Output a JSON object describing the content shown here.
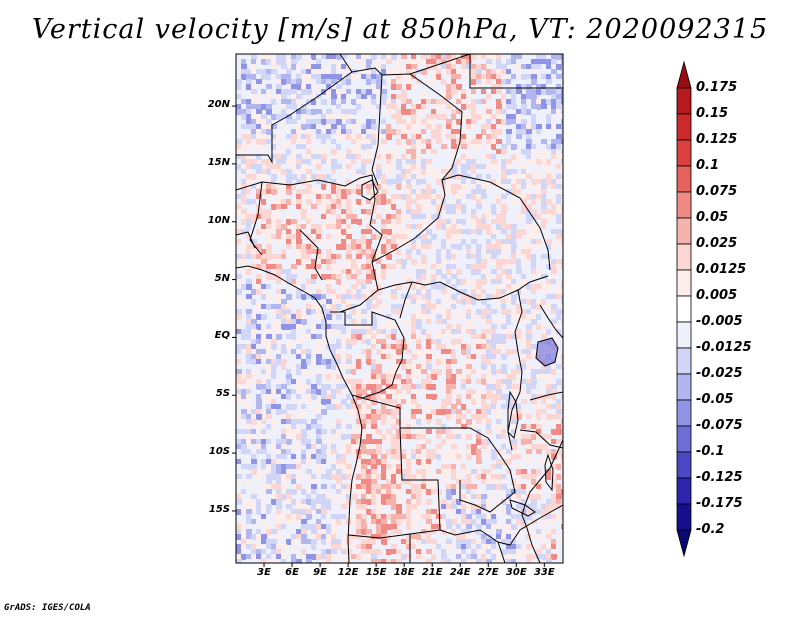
{
  "title": "Vertical velocity [m/s] at 850hPa, VT: 2020092315",
  "credit": "GrADS: IGES/COLA",
  "lat_labels": [
    "20N",
    "15N",
    "10N",
    "5N",
    "EQ",
    "5S",
    "10S",
    "15S"
  ],
  "lat_values": [
    20,
    15,
    10,
    5,
    0,
    -5,
    -10,
    -15
  ],
  "lon_labels": [
    "3E",
    "6E",
    "9E",
    "12E",
    "15E",
    "18E",
    "21E",
    "24E",
    "27E",
    "30E",
    "33E"
  ],
  "lon_values": [
    3,
    6,
    9,
    12,
    15,
    18,
    21,
    24,
    27,
    30,
    33
  ],
  "colorbar": {
    "labels": [
      "0.175",
      "0.15",
      "0.125",
      "0.1",
      "0.075",
      "0.05",
      "0.025",
      "0.0125",
      "0.005",
      "-0.005",
      "-0.0125",
      "-0.025",
      "-0.05",
      "-0.075",
      "-0.1",
      "-0.125",
      "-0.175",
      "-0.2"
    ],
    "colors": [
      "#9a0c14",
      "#b71a1e",
      "#cc2b2b",
      "#dc4040",
      "#e6625d",
      "#ef8a85",
      "#f6b3ae",
      "#fbd6d3",
      "#fdeeec",
      "#ffffff",
      "#eef0fc",
      "#d2d6f6",
      "#b1b6ee",
      "#8f94e4",
      "#6d6fd6",
      "#4a48c4",
      "#2b26ac",
      "#14108c",
      "#0a0870"
    ]
  },
  "chart_data": {
    "type": "heatmap",
    "variable": "Vertical velocity",
    "units": "m/s",
    "level": "850hPa",
    "valid_time": "2020092315",
    "lon_range": [
      0,
      35
    ],
    "lat_range": [
      -19.5,
      24.5
    ],
    "contour_levels": [
      -0.2,
      -0.175,
      -0.125,
      -0.1,
      -0.075,
      -0.05,
      -0.025,
      -0.0125,
      -0.005,
      0.005,
      0.0125,
      0.025,
      0.05,
      0.075,
      0.1,
      0.125,
      0.15,
      0.175
    ]
  }
}
